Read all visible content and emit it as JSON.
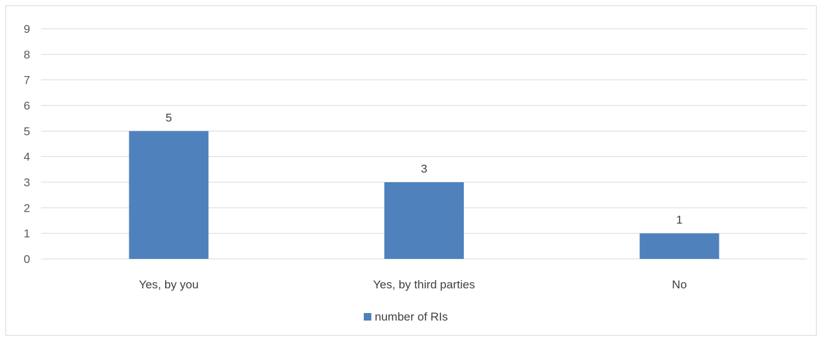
{
  "chart_data": {
    "type": "bar",
    "categories": [
      "Yes, by you",
      "Yes, by third parties",
      "No"
    ],
    "series": [
      {
        "name": "number of RIs",
        "values": [
          5,
          3,
          1
        ],
        "color": "#4f81bd"
      }
    ],
    "ylim": [
      0,
      9
    ],
    "yticks": [
      0,
      1,
      2,
      3,
      4,
      5,
      6,
      7,
      8,
      9
    ],
    "grid": true,
    "data_labels": true,
    "legend_position": "bottom"
  },
  "colors": {
    "bar": "#4f81bd",
    "gridline": "#d9d9d9",
    "text": "#595959"
  }
}
